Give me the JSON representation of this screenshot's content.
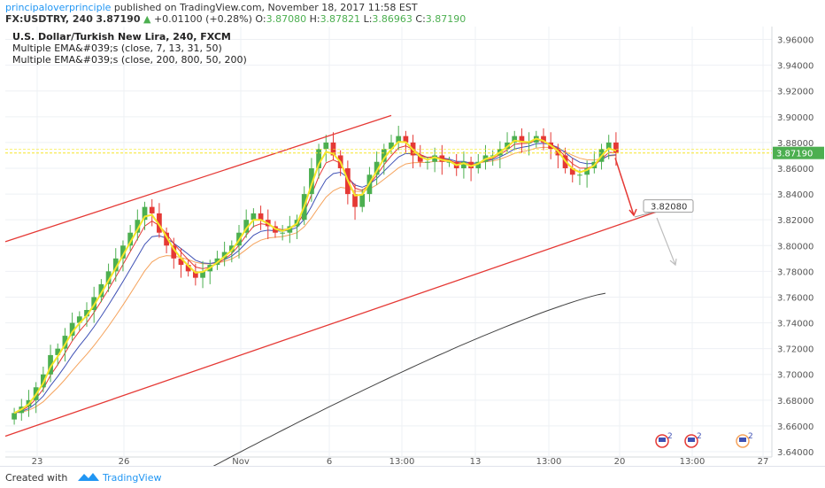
{
  "header": {
    "publisher": "principaloverprinciple",
    "published_text": "published on TradingView.com, November 18, 2017 11:58 EST",
    "symbol": "FX:USDTRY, 240",
    "last": "3.87190",
    "change": "+0.01100 (+0.28%)",
    "open_label": "O:",
    "open": "3.87080",
    "high_label": "H:",
    "high": "3.87821",
    "low_label": "L:",
    "low": "3.86963",
    "close_label": "C:",
    "close": "3.87190"
  },
  "legend": {
    "title": "U.S. Dollar/Turkish New Lira, 240, FXCM",
    "ema1": "Multiple EMA&#039;s (close, 7, 13, 31, 50)",
    "ema2": "Multiple EMA&#039;s (close, 200, 800, 50, 200)"
  },
  "footer": {
    "created_with": "Created with",
    "brand": "TradingView"
  },
  "colors": {
    "up": "#4caf50",
    "down": "#e53935",
    "channel": "#e53935",
    "ema7": "#f5e62a",
    "ema13": "#e53935",
    "ema31": "#3f51b5",
    "ema50": "#f5a35c",
    "ema200": "#424242",
    "price_line": "#f5e62a",
    "badge": "#4caf50"
  },
  "chart_data": {
    "type": "candlestick",
    "ylim": [
      3.64,
      3.97
    ],
    "y_ticks": [
      "3.96000",
      "3.94000",
      "3.92000",
      "3.90000",
      "3.88000",
      "3.86000",
      "3.84000",
      "3.82000",
      "3.80000",
      "3.78000",
      "3.76000",
      "3.74000",
      "3.72000",
      "3.70000",
      "3.68000",
      "3.66000",
      "3.64000"
    ],
    "x_ticks": [
      "23",
      "26",
      "Nov",
      "6",
      "13:00",
      "13",
      "13:00",
      "20",
      "13:00",
      "27"
    ],
    "current_price": "3.87190",
    "target_label": "3.82080",
    "target_value": 3.8208,
    "series_close": [
      3.67,
      3.675,
      3.68,
      3.69,
      3.7,
      3.715,
      3.72,
      3.73,
      3.74,
      3.745,
      3.75,
      3.76,
      3.77,
      3.78,
      3.79,
      3.8,
      3.81,
      3.82,
      3.83,
      3.825,
      3.81,
      3.8,
      3.79,
      3.785,
      3.78,
      3.775,
      3.78,
      3.785,
      3.79,
      3.795,
      3.8,
      3.81,
      3.82,
      3.825,
      3.82,
      3.815,
      3.81,
      3.81,
      3.815,
      3.82,
      3.84,
      3.86,
      3.875,
      3.88,
      3.87,
      3.86,
      3.84,
      3.83,
      3.84,
      3.855,
      3.865,
      3.875,
      3.88,
      3.885,
      3.88,
      3.87,
      3.865,
      3.865,
      3.87,
      3.865,
      3.865,
      3.86,
      3.865,
      3.86,
      3.865,
      3.87,
      3.87,
      3.875,
      3.88,
      3.885,
      3.88,
      3.88,
      3.885,
      3.88,
      3.875,
      3.87,
      3.86,
      3.855,
      3.855,
      3.86,
      3.865,
      3.875,
      3.88,
      3.872
    ]
  }
}
